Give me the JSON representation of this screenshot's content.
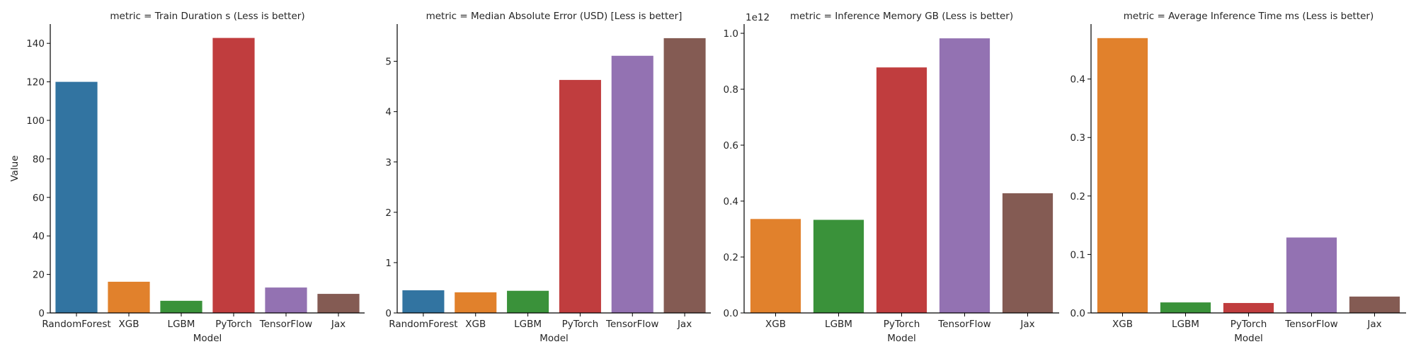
{
  "chart_data": [
    {
      "type": "bar",
      "title": "metric = Train Duration s (Less is better)",
      "xlabel": "Model",
      "ylabel": "Value",
      "categories": [
        "RandomForest",
        "XGB",
        "LGBM",
        "PyTorch",
        "TensorFlow",
        "Jax"
      ],
      "values": [
        120.0,
        16.2,
        6.3,
        142.8,
        13.2,
        9.9
      ],
      "colors": [
        "#3274a1",
        "#e1812c",
        "#3a923a",
        "#c03d3e",
        "#9372b2",
        "#845b53"
      ],
      "ylim": [
        0,
        150
      ],
      "yticks": [
        0,
        20,
        40,
        60,
        80,
        100,
        120,
        140
      ],
      "ytick_labels": [
        "0",
        "20",
        "40",
        "60",
        "80",
        "100",
        "120",
        "140"
      ],
      "offset_text": "",
      "grid": false
    },
    {
      "type": "bar",
      "title": "metric = Median Absolute Error (USD) [Less is better]",
      "xlabel": "Model",
      "ylabel": "",
      "categories": [
        "RandomForest",
        "XGB",
        "LGBM",
        "PyTorch",
        "TensorFlow",
        "Jax"
      ],
      "values": [
        0.45,
        0.41,
        0.44,
        4.63,
        5.11,
        5.46
      ],
      "colors": [
        "#3274a1",
        "#e1812c",
        "#3a923a",
        "#c03d3e",
        "#9372b2",
        "#845b53"
      ],
      "ylim": [
        0,
        5.74
      ],
      "yticks": [
        0,
        1,
        2,
        3,
        4,
        5
      ],
      "ytick_labels": [
        "0",
        "1",
        "2",
        "3",
        "4",
        "5"
      ],
      "offset_text": "",
      "grid": false
    },
    {
      "type": "bar",
      "title": "metric = Inference Memory GB (Less is better)",
      "xlabel": "Model",
      "ylabel": "",
      "categories": [
        "XGB",
        "LGBM",
        "PyTorch",
        "TensorFlow",
        "Jax"
      ],
      "values": [
        336000000000.0,
        333000000000.0,
        878000000000.0,
        982000000000.0,
        428000000000.0
      ],
      "colors": [
        "#e1812c",
        "#3a923a",
        "#c03d3e",
        "#9372b2",
        "#845b53"
      ],
      "ylim": [
        0,
        1033000000000.0
      ],
      "yticks": [
        0,
        200000000000.0,
        400000000000.0,
        600000000000.0,
        800000000000.0,
        1000000000000.0
      ],
      "ytick_labels": [
        "0.0",
        "0.2",
        "0.4",
        "0.6",
        "0.8",
        "1.0"
      ],
      "offset_text": "1e12",
      "grid": false
    },
    {
      "type": "bar",
      "title": "metric = Average Inference Time ms (Less is better)",
      "xlabel": "Model",
      "ylabel": "",
      "categories": [
        "XGB",
        "LGBM",
        "PyTorch",
        "TensorFlow",
        "Jax"
      ],
      "values": [
        0.47,
        0.018,
        0.017,
        0.129,
        0.028
      ],
      "colors": [
        "#e1812c",
        "#3a923a",
        "#c03d3e",
        "#9372b2",
        "#845b53"
      ],
      "ylim": [
        0,
        0.494
      ],
      "yticks": [
        0,
        0.1,
        0.2,
        0.3,
        0.4
      ],
      "ytick_labels": [
        "0.0",
        "0.1",
        "0.2",
        "0.3",
        "0.4"
      ],
      "offset_text": "",
      "grid": false
    }
  ]
}
